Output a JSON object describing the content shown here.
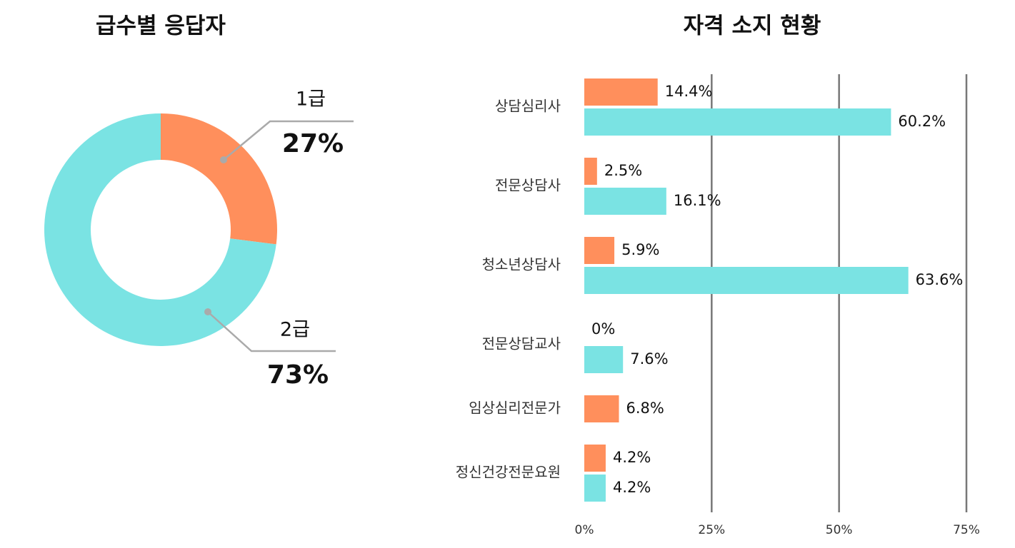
{
  "chart_data": [
    {
      "type": "donut",
      "title": "급수별 응답자",
      "categories": [
        "1급",
        "2급"
      ],
      "values": [
        27,
        73
      ],
      "value_labels": [
        "27%",
        "73%"
      ],
      "colors": [
        "#ff8f5c",
        "#7ae3e3"
      ]
    },
    {
      "type": "barh",
      "title": "자격 소지 현황",
      "categories": [
        "상담심리사",
        "전문상담사",
        "청소년상담사",
        "전문상담교사",
        "임상심리전문가",
        "정신건강전문요원"
      ],
      "series": [
        {
          "color": "#ff8f5c",
          "values": [
            14.4,
            2.5,
            5.9,
            0,
            6.8,
            4.2
          ],
          "value_labels": [
            "14.4%",
            "2.5%",
            "5.9%",
            "0%",
            "6.8%",
            "4.2%"
          ]
        },
        {
          "color": "#7ae3e3",
          "values": [
            60.2,
            16.1,
            63.6,
            7.6,
            null,
            4.2
          ],
          "value_labels": [
            "60.2%",
            "16.1%",
            "63.6%",
            "7.6%",
            null,
            "4.2%"
          ]
        }
      ],
      "xlim": [
        0,
        75
      ],
      "xticks": [
        {
          "value": 0,
          "label": "0%"
        },
        {
          "value": 25,
          "label": "25%"
        },
        {
          "value": 50,
          "label": "50%"
        },
        {
          "value": 75,
          "label": "75%"
        }
      ],
      "grid": true
    }
  ]
}
